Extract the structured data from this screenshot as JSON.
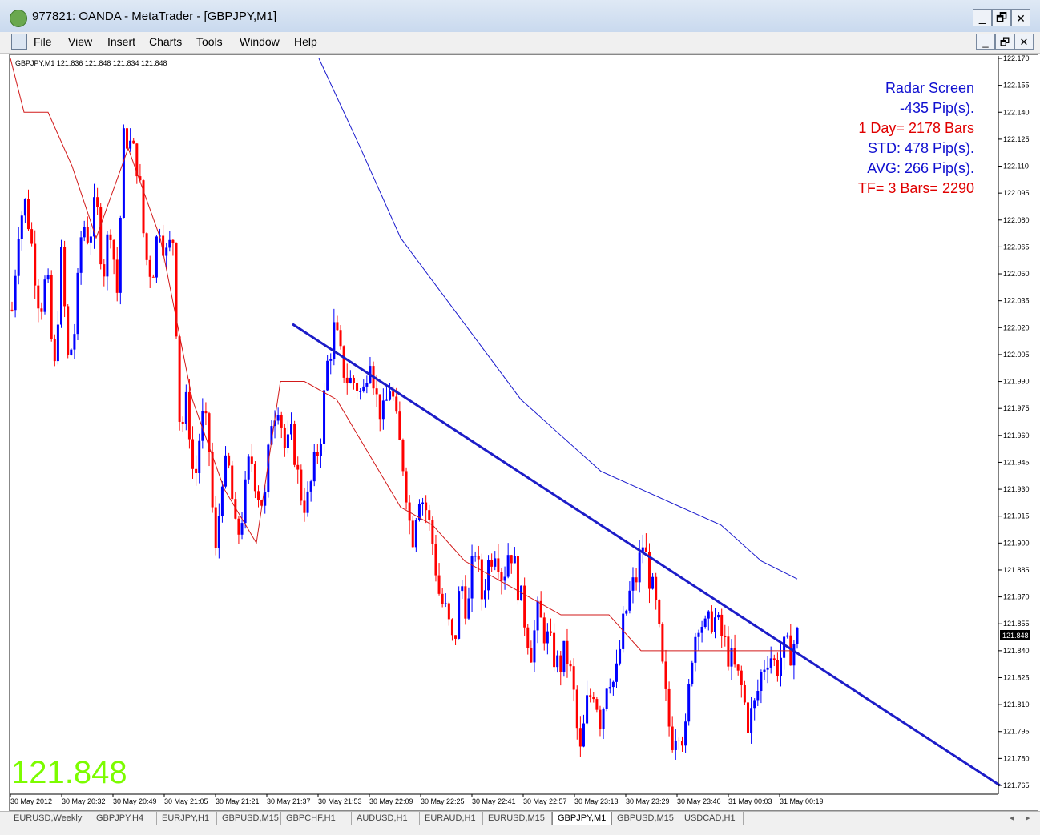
{
  "window": {
    "title": "977821: OANDA - MetaTrader - [GBPJPY,M1]",
    "minimize": "_",
    "restore": "🗗",
    "close": "✕"
  },
  "menu": [
    "File",
    "View",
    "Insert",
    "Charts",
    "Tools",
    "Window",
    "Help"
  ],
  "chart_header": "GBPJPY,M1  121.836 121.848 121.834 121.848",
  "radar": [
    {
      "text": "Radar Screen",
      "color": "#1010d0"
    },
    {
      "text": "-435 Pip(s).",
      "color": "#1010d0"
    },
    {
      "text": "1 Day= 2178 Bars",
      "color": "#e00000"
    },
    {
      "text": "STD: 478 Pip(s).",
      "color": "#1010d0"
    },
    {
      "text": "AVG: 266 Pip(s).",
      "color": "#1010d0"
    },
    {
      "text": "TF= 3 Bars= 2290",
      "color": "#e00000"
    }
  ],
  "big_price": "121.848",
  "current_price_label": "121.848",
  "colors": {
    "bull": "#0000ff",
    "bear": "#ff0000",
    "big_price": "#7cfc00"
  },
  "chart_data": {
    "type": "candlestick",
    "symbol": "GBPJPY",
    "timeframe": "M1",
    "ylim": [
      121.765,
      122.17
    ],
    "yticks": [
      "122.170",
      "122.155",
      "122.140",
      "122.125",
      "122.110",
      "122.095",
      "122.080",
      "122.065",
      "122.050",
      "122.035",
      "122.020",
      "122.005",
      "121.990",
      "121.975",
      "121.960",
      "121.945",
      "121.930",
      "121.915",
      "121.900",
      "121.885",
      "121.870",
      "121.855",
      "121.840",
      "121.825",
      "121.810",
      "121.795",
      "121.780",
      "121.765"
    ],
    "xticks": [
      "30 May 2012",
      "30 May 20:32",
      "30 May 20:49",
      "30 May 21:05",
      "30 May 21:21",
      "30 May 21:37",
      "30 May 21:53",
      "30 May 22:09",
      "30 May 22:25",
      "30 May 22:41",
      "30 May 22:57",
      "30 May 23:13",
      "30 May 23:29",
      "30 May 23:46",
      "31 May 00:03",
      "31 May 00:19"
    ],
    "close_path": [
      122.03,
      122.08,
      122.09,
      122.06,
      122.03,
      122.05,
      121.99,
      122.06,
      122.0,
      122.02,
      122.08,
      122.07,
      122.09,
      122.05,
      122.08,
      122.04,
      122.13,
      122.12,
      122.11,
      122.06,
      122.05,
      122.08,
      122.06,
      122.07,
      121.96,
      121.98,
      121.93,
      121.97,
      121.96,
      121.89,
      121.94,
      121.94,
      121.9,
      121.92,
      121.95,
      121.93,
      121.92,
      121.97,
      121.98,
      121.95,
      121.96,
      121.93,
      121.92,
      121.94,
      121.96,
      122.0,
      122.02,
      122.0,
      121.99,
      121.99,
      121.98,
      122.01,
      121.98,
      121.97,
      121.99,
      121.96,
      121.94,
      121.9,
      121.93,
      121.92,
      121.9,
      121.87,
      121.86,
      121.84,
      121.88,
      121.86,
      121.9,
      121.87,
      121.89,
      121.9,
      121.88,
      121.9,
      121.88,
      121.86,
      121.84,
      121.86,
      121.85,
      121.84,
      121.83,
      121.84,
      121.82,
      121.78,
      121.81,
      121.82,
      121.8,
      121.83,
      121.82,
      121.85,
      121.87,
      121.88,
      121.9,
      121.88,
      121.86,
      121.82,
      121.79,
      121.8,
      121.79,
      121.84,
      121.86,
      121.85,
      121.86,
      121.85,
      121.84,
      121.83,
      121.82,
      121.8,
      121.81,
      121.83,
      121.84,
      121.83,
      121.84,
      121.84,
      121.848
    ],
    "ma_fast": [
      [
        13,
        122.17
      ],
      [
        30,
        122.14
      ],
      [
        60,
        122.14
      ],
      [
        90,
        122.11
      ],
      [
        120,
        122.07
      ],
      [
        160,
        122.12
      ],
      [
        200,
        122.07
      ],
      [
        240,
        121.98
      ],
      [
        280,
        121.93
      ],
      [
        320,
        121.9
      ],
      [
        350,
        121.99
      ],
      [
        380,
        121.99
      ],
      [
        420,
        121.98
      ],
      [
        460,
        121.95
      ],
      [
        500,
        121.92
      ],
      [
        540,
        121.91
      ],
      [
        580,
        121.89
      ],
      [
        620,
        121.88
      ],
      [
        660,
        121.87
      ],
      [
        700,
        121.86
      ],
      [
        735,
        121.86
      ],
      [
        760,
        121.86
      ],
      [
        800,
        121.84
      ],
      [
        840,
        121.84
      ],
      [
        880,
        121.84
      ],
      [
        920,
        121.84
      ],
      [
        960,
        121.84
      ],
      [
        990,
        121.84
      ]
    ],
    "ma_slow": [
      [
        398,
        122.17
      ],
      [
        450,
        122.12
      ],
      [
        500,
        122.07
      ],
      [
        550,
        122.04
      ],
      [
        600,
        122.01
      ],
      [
        650,
        121.98
      ],
      [
        700,
        121.96
      ],
      [
        750,
        121.94
      ],
      [
        800,
        121.93
      ],
      [
        850,
        121.92
      ],
      [
        900,
        121.91
      ],
      [
        950,
        121.89
      ],
      [
        995,
        121.88
      ]
    ],
    "trendline": [
      [
        365,
        122.022
      ],
      [
        1248,
        121.765
      ]
    ]
  },
  "tabs": [
    "EURUSD,Weekly",
    "GBPJPY,H4",
    "EURJPY,H1",
    "GBPUSD,M15",
    "GBPCHF,H1",
    "AUDUSD,H1",
    "EURAUD,H1",
    "EURUSD,M15",
    "GBPJPY,M1",
    "GBPUSD,M15",
    "USDCAD,H1"
  ],
  "active_tab": "GBPJPY,M1"
}
